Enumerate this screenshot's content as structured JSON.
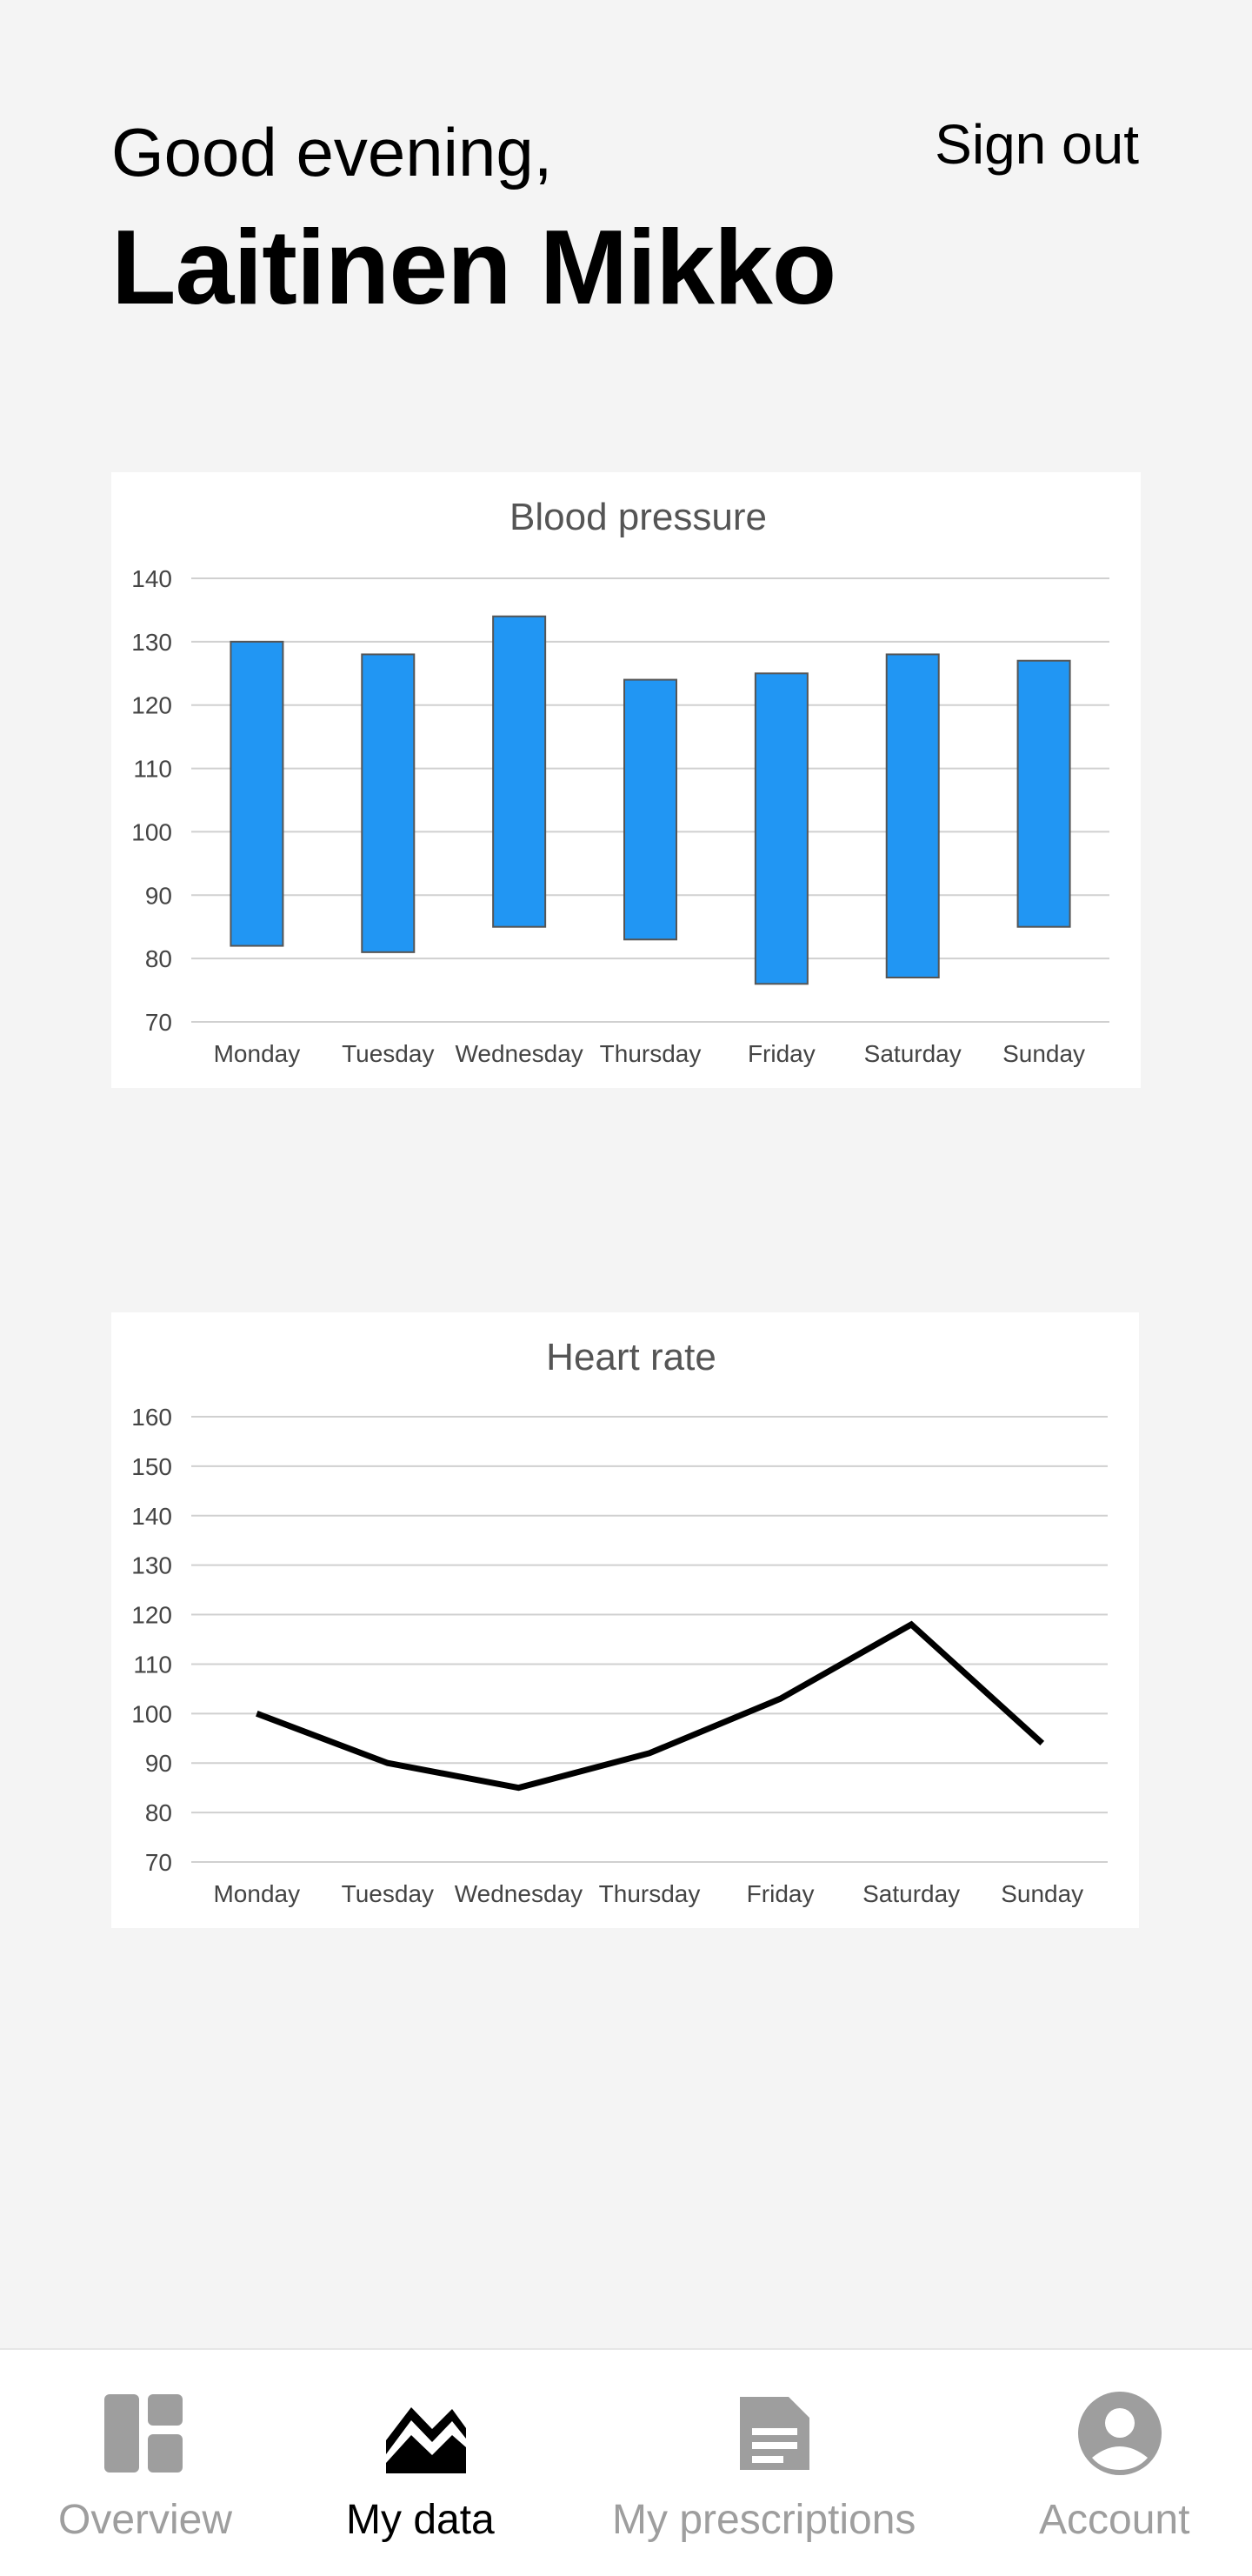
{
  "header": {
    "greeting": "Good evening,",
    "user_name": "Laitinen Mikko",
    "sign_out_label": "Sign out"
  },
  "colors": {
    "bar_fill": "#2196f3",
    "bar_stroke": "#555555",
    "line": "#000000",
    "grid": "#d0d0d0",
    "nav_inactive": "#9e9e9e",
    "nav_active": "#000000"
  },
  "chart_data": [
    {
      "type": "bar",
      "subtype": "floating-range",
      "title": "Blood pressure",
      "categories": [
        "Monday",
        "Tuesday",
        "Wednesday",
        "Thursday",
        "Friday",
        "Saturday",
        "Sunday"
      ],
      "series": [
        {
          "low": [
            82,
            81,
            85,
            83,
            76,
            77,
            85
          ],
          "high": [
            130,
            128,
            134,
            124,
            125,
            128,
            127
          ]
        }
      ],
      "ylim": [
        70,
        140
      ],
      "yticks": [
        140,
        130,
        120,
        110,
        100,
        90,
        80,
        70
      ],
      "grid": true,
      "legend": "none"
    },
    {
      "type": "line",
      "title": "Heart rate",
      "categories": [
        "Monday",
        "Tuesday",
        "Wednesday",
        "Thursday",
        "Friday",
        "Saturday",
        "Sunday"
      ],
      "series": [
        {
          "values": [
            100,
            90,
            85,
            92,
            103,
            118,
            94
          ]
        }
      ],
      "ylim": [
        70,
        160
      ],
      "yticks": [
        160,
        150,
        140,
        130,
        120,
        110,
        100,
        90,
        80,
        70
      ],
      "grid": true,
      "legend": "none"
    }
  ],
  "nav": {
    "items": [
      {
        "label": "Overview",
        "icon": "dashboard-icon",
        "active": false
      },
      {
        "label": "My data",
        "icon": "chart-icon",
        "active": true
      },
      {
        "label": "My prescriptions",
        "icon": "document-icon",
        "active": false
      },
      {
        "label": "Account",
        "icon": "account-circle-icon",
        "active": false
      }
    ]
  }
}
